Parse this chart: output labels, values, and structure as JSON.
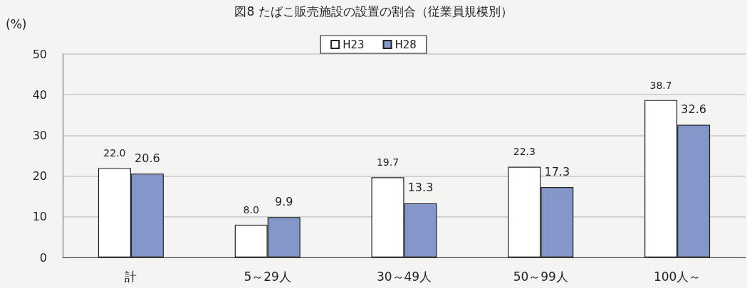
{
  "chart_data": {
    "type": "bar",
    "title": "図8 たばこ販売施設の設置の割合（従業員規模別）",
    "ylabel": "(%)",
    "categories": [
      "計",
      "5～29人",
      "30～49人",
      "50～99人",
      "100人～"
    ],
    "series": [
      {
        "name": "H23",
        "color": "#ffffff",
        "values": [
          22.0,
          8.0,
          19.7,
          22.3,
          38.7
        ],
        "value_labels": [
          "22.0",
          "8.0",
          "19.7",
          "22.3",
          "38.7"
        ]
      },
      {
        "name": "H28",
        "color": "#8497c9",
        "values": [
          20.6,
          9.9,
          13.3,
          17.3,
          32.6
        ],
        "value_labels": [
          "20.6",
          "9.9",
          "13.3",
          "17.3",
          "32.6"
        ]
      }
    ],
    "ylim": [
      0,
      50
    ],
    "yticks": [
      0,
      10,
      20,
      30,
      40,
      50
    ],
    "grid": "y",
    "legend": "top"
  }
}
